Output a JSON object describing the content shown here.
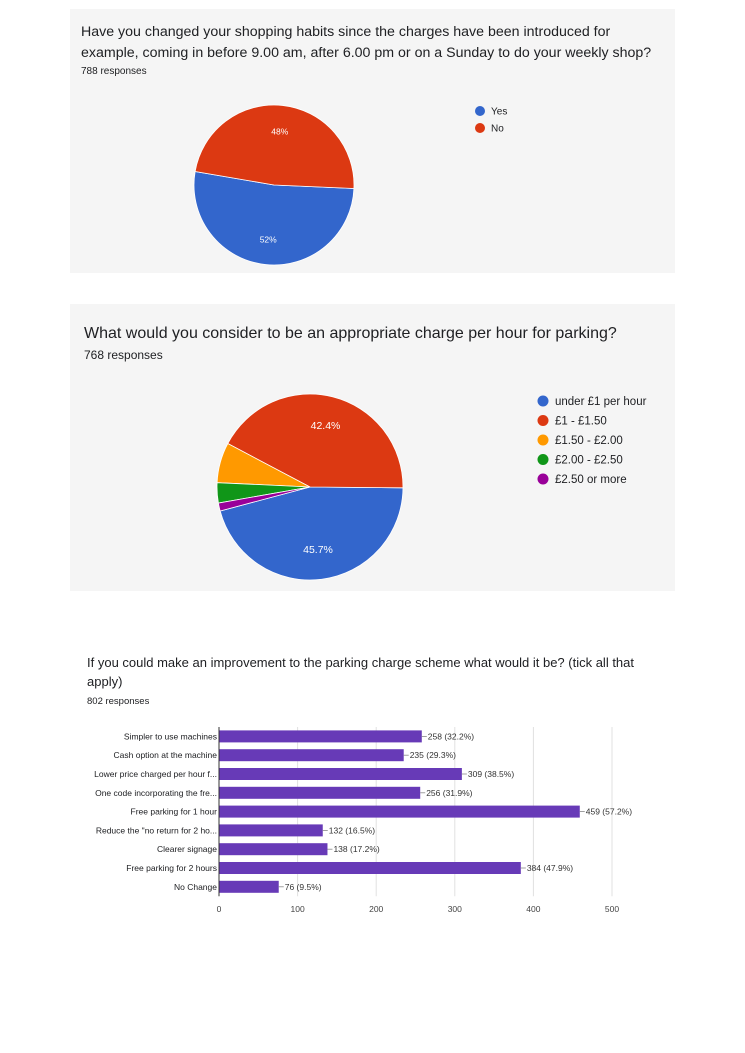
{
  "chart_data": [
    {
      "type": "pie",
      "title": "Have you changed your shopping habits since the charges have been introduced for example, coming in before 9.00 am, after 6.00 pm or on a Sunday to do your weekly shop?",
      "responses": "788 responses",
      "legend_position": "right",
      "slices": [
        {
          "label": "Yes",
          "value": 52,
          "display": "52%",
          "color": "#3366cc"
        },
        {
          "label": "No",
          "value": 48,
          "display": "48%",
          "color": "#dc3912"
        }
      ]
    },
    {
      "type": "pie",
      "title": "What would you consider to be an appropriate charge per hour for parking?",
      "responses": "768 responses",
      "legend_position": "right",
      "slices": [
        {
          "label": "under £1 per hour",
          "value": 45.7,
          "display": "45.7%",
          "color": "#3366cc"
        },
        {
          "label": "£1 - £1.50",
          "value": 42.4,
          "display": "42.4%",
          "color": "#dc3912"
        },
        {
          "label": "£1.50 - £2.00",
          "value": 7.0,
          "display": "",
          "color": "#ff9900"
        },
        {
          "label": "£2.00 - £2.50",
          "value": 3.5,
          "display": "",
          "color": "#109618"
        },
        {
          "label": "£2.50 or more",
          "value": 1.4,
          "display": "",
          "color": "#990099"
        }
      ]
    },
    {
      "type": "bar",
      "orientation": "horizontal",
      "title": "If you could make an improvement to the parking charge scheme what would it be? (tick all that apply)",
      "responses": "802 responses",
      "color": "#673ab7",
      "xlim": [
        0,
        500
      ],
      "xticks": [
        0,
        100,
        200,
        300,
        400,
        500
      ],
      "grid": true,
      "categories": [
        "Simpler to use machines",
        "Cash option at the machine",
        "Lower price charged per hour f...",
        "One code incorporating the fre...",
        "Free parking for 1 hour",
        "Reduce the \"no return for 2 ho...",
        "Clearer signage",
        "Free parking for 2 hours",
        "No Change"
      ],
      "values": [
        258,
        235,
        309,
        256,
        459,
        132,
        138,
        384,
        76
      ],
      "value_labels": [
        "258 (32.2%)",
        "235 (29.3%)",
        "309 (38.5%)",
        "256 (31.9%)",
        "459 (57.2%)",
        "132 (16.5%)",
        "138 (17.2%)",
        "384 (47.9%)",
        "76 (9.5%)"
      ]
    }
  ]
}
